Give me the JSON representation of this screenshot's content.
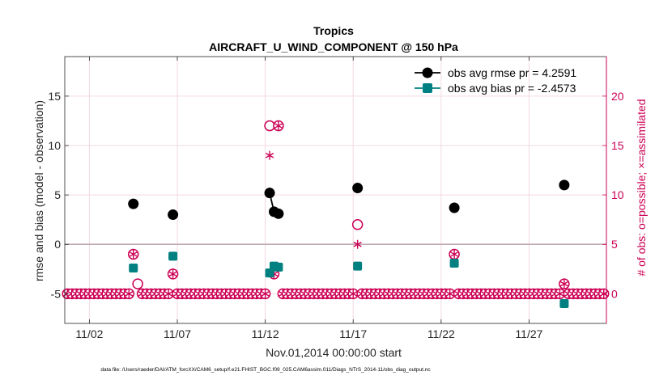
{
  "chart_data": {
    "type": "scatter",
    "title": "Tropics",
    "subtitle": "AIRCRAFT_U_WIND_COMPONENT @ 150 hPa",
    "xlabel": "Nov.01,2014 00:00:00 start",
    "ylabel": "rmse and bias (model - observation)",
    "ylabel_right": "# of obs: o=possible; ×=assimilated",
    "footnote": "data file: /Users/raeder/DAI/ATM_forcXX/CAM6_setup/f.e21.FHIST_BGC.f09_025.CAM6assim.011/Diags_NTrS_2014-11/obs_diag_output.nc",
    "xlim": [
      0.6,
      31.4
    ],
    "ylim": [
      -8,
      19
    ],
    "ylim_right": [
      -3,
      24
    ],
    "grid": true,
    "legend_position": "top-right",
    "x_ticks": [
      {
        "value": 2,
        "label": "11/02"
      },
      {
        "value": 7,
        "label": "11/07"
      },
      {
        "value": 12,
        "label": "11/12"
      },
      {
        "value": 17,
        "label": "11/17"
      },
      {
        "value": 22,
        "label": "11/22"
      },
      {
        "value": 27,
        "label": "11/27"
      }
    ],
    "y_ticks": [
      {
        "value": -5,
        "label": "-5"
      },
      {
        "value": 0,
        "label": "0"
      },
      {
        "value": 5,
        "label": "5"
      },
      {
        "value": 10,
        "label": "10"
      },
      {
        "value": 15,
        "label": "15"
      }
    ],
    "y_ticks_right": [
      {
        "value": 0,
        "label": "0"
      },
      {
        "value": 5,
        "label": "5"
      },
      {
        "value": 10,
        "label": "10"
      },
      {
        "value": 15,
        "label": "15"
      },
      {
        "value": 20,
        "label": "20"
      }
    ],
    "colors": {
      "rmse": "#000000",
      "bias": "#008080",
      "obs": "#cc0055",
      "zero_line": "#c0a8b0",
      "grid": "#f2d9e2"
    },
    "series": [
      {
        "name": "rmse",
        "label": "obs avg rmse pr = 4.2591",
        "points": [
          [
            4.5,
            4.1
          ],
          [
            6.75,
            3.0
          ],
          [
            12.25,
            5.2
          ],
          [
            12.5,
            3.3
          ],
          [
            12.75,
            3.1
          ],
          [
            17.25,
            5.7
          ],
          [
            22.75,
            3.7
          ],
          [
            29.0,
            6.0
          ]
        ],
        "segments": [
          [
            [
              12.25,
              5.2
            ],
            [
              12.5,
              3.3
            ],
            [
              12.75,
              3.1
            ]
          ]
        ]
      },
      {
        "name": "bias",
        "label": "obs avg bias pr = -2.4573",
        "points": [
          [
            4.5,
            -2.4
          ],
          [
            6.75,
            -1.2
          ],
          [
            12.25,
            -2.9
          ],
          [
            12.5,
            -2.2
          ],
          [
            12.75,
            -2.3
          ],
          [
            17.25,
            -2.2
          ],
          [
            22.75,
            -1.9
          ],
          [
            29.0,
            -6.0
          ]
        ],
        "segments": [
          [
            [
              12.25,
              -2.9
            ],
            [
              12.5,
              -2.2
            ],
            [
              12.75,
              -2.3
            ]
          ]
        ]
      },
      {
        "name": "obs_possible",
        "points": [
          [
            4.5,
            4
          ],
          [
            4.75,
            1
          ],
          [
            6.75,
            2
          ],
          [
            12.25,
            17
          ],
          [
            12.5,
            2
          ],
          [
            12.75,
            17
          ],
          [
            17.25,
            7
          ],
          [
            22.75,
            4
          ],
          [
            29.0,
            1
          ]
        ]
      },
      {
        "name": "obs_assimilated",
        "points": [
          [
            4.5,
            4
          ],
          [
            6.75,
            2
          ],
          [
            12.25,
            14
          ],
          [
            12.5,
            2
          ],
          [
            12.75,
            17
          ],
          [
            17.25,
            5
          ],
          [
            22.75,
            4
          ],
          [
            29.0,
            1
          ]
        ]
      }
    ],
    "zero_baseline": {
      "from": 0.75,
      "to": 31.25,
      "step": 0.25,
      "value": 0
    }
  }
}
